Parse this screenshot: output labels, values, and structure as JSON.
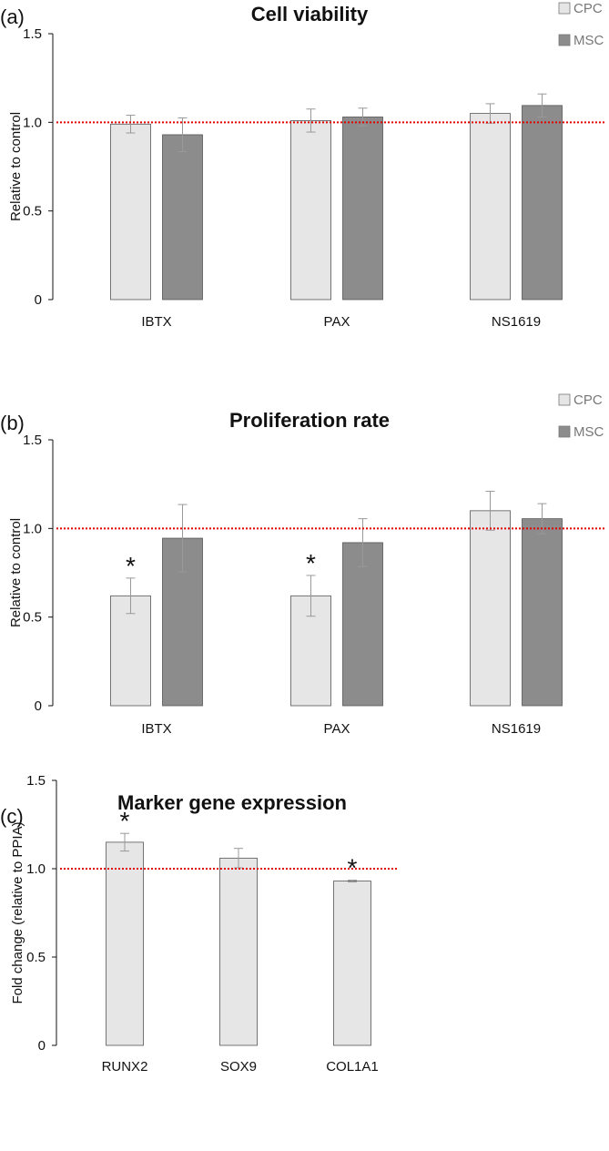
{
  "chart_data": [
    {
      "type": "bar",
      "panel": "(a)",
      "title": "Cell viability",
      "ylabel": "Relative to control",
      "xlabel": "",
      "ylim": [
        0,
        1.5
      ],
      "yticks": [
        "0",
        "0.5",
        "1.0",
        "1.5"
      ],
      "yticks_values": [
        0,
        0.5,
        1.0,
        1.5
      ],
      "categories": [
        "IBTX",
        "PAX",
        "NS1619"
      ],
      "reference_line": 1.0,
      "legend_position": "top-right",
      "series": [
        {
          "name": "CPC",
          "color": "#e6e6e6",
          "values": [
            0.99,
            1.01,
            1.05
          ],
          "errors": [
            0.05,
            0.065,
            0.055
          ],
          "significant": [
            false,
            false,
            false
          ]
        },
        {
          "name": "MSC",
          "color": "#8c8c8c",
          "values": [
            0.93,
            1.03,
            1.095
          ],
          "errors": [
            0.095,
            0.05,
            0.065
          ],
          "significant": [
            false,
            false,
            false
          ]
        }
      ]
    },
    {
      "type": "bar",
      "panel": "(b)",
      "title": "Proliferation rate",
      "ylabel": "Relative to control",
      "xlabel": "",
      "ylim": [
        0,
        1.5
      ],
      "yticks": [
        "0",
        "0.5",
        "1.0",
        "1.5"
      ],
      "yticks_values": [
        0,
        0.5,
        1.0,
        1.5
      ],
      "categories": [
        "IBTX",
        "PAX",
        "NS1619"
      ],
      "reference_line": 1.0,
      "legend_position": "top-right",
      "series": [
        {
          "name": "CPC",
          "color": "#e6e6e6",
          "values": [
            0.62,
            0.62,
            1.1
          ],
          "errors": [
            0.1,
            0.115,
            0.11
          ],
          "significant": [
            true,
            true,
            false
          ]
        },
        {
          "name": "MSC",
          "color": "#8c8c8c",
          "values": [
            0.945,
            0.92,
            1.055
          ],
          "errors": [
            0.19,
            0.135,
            0.085
          ],
          "significant": [
            false,
            false,
            false
          ]
        }
      ]
    },
    {
      "type": "bar",
      "panel": "(c)",
      "title": "Marker gene expression",
      "ylabel": "Fold change (relative to PPIA)",
      "xlabel": "",
      "ylim": [
        0,
        1.5
      ],
      "yticks": [
        "0",
        "0.5",
        "1.0",
        "1.5"
      ],
      "yticks_values": [
        0,
        0.5,
        1.0,
        1.5
      ],
      "categories": [
        "RUNX2",
        "SOX9",
        "COL1A1"
      ],
      "reference_line": 1.0,
      "series": [
        {
          "name": "",
          "color": "#e6e6e6",
          "values": [
            1.15,
            1.06,
            0.93
          ],
          "errors": [
            0.05,
            0.055,
            0.005
          ],
          "significant": [
            true,
            false,
            true
          ]
        }
      ]
    }
  ]
}
